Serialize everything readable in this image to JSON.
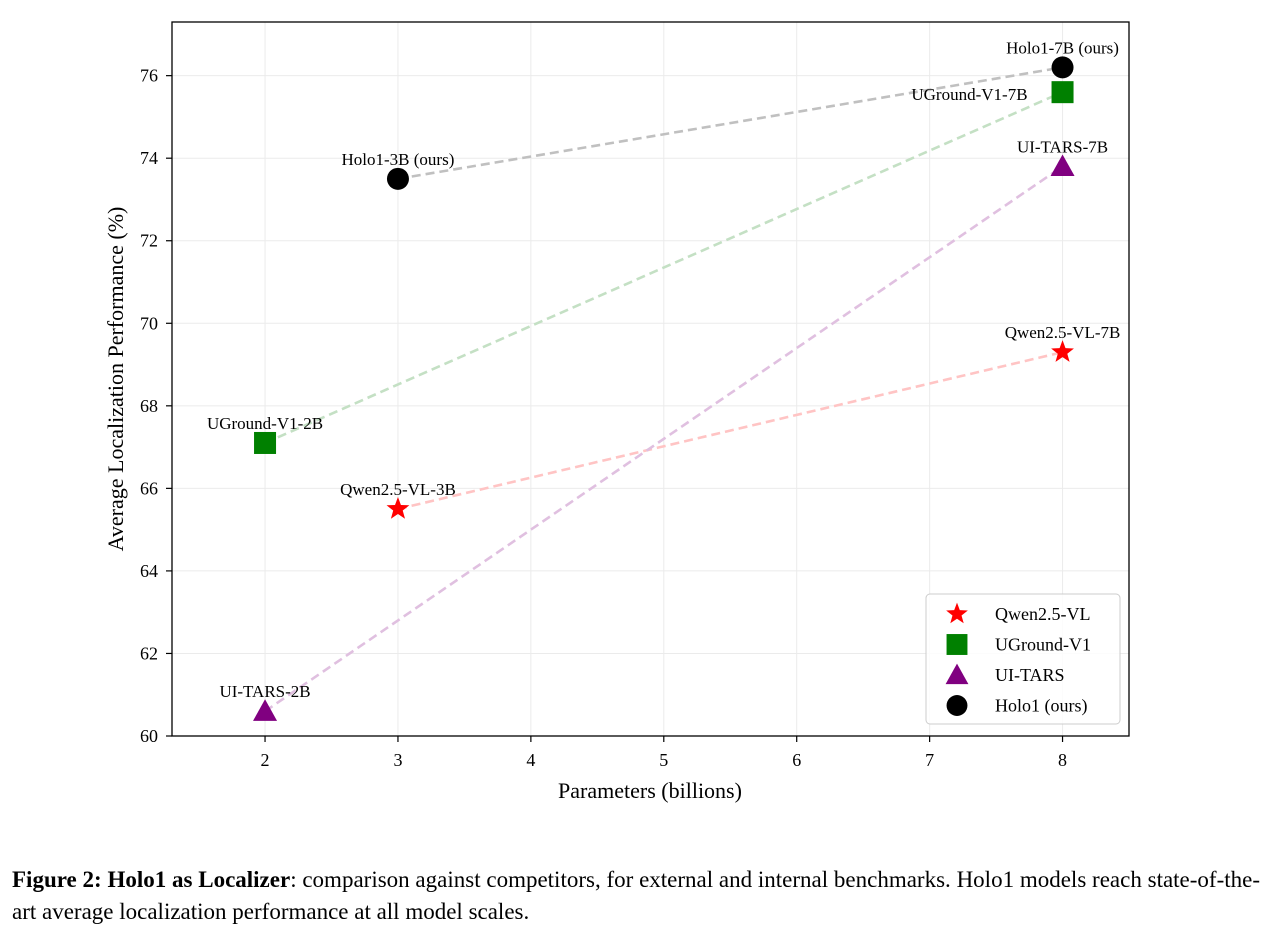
{
  "chart_data": {
    "type": "scatter",
    "xlabel": "Parameters (billions)",
    "ylabel": "Average Localization Performance (%)",
    "xlim": [
      1.3,
      8.5
    ],
    "ylim": [
      60,
      77.3
    ],
    "xticks": [
      2,
      3,
      4,
      5,
      6,
      7,
      8
    ],
    "yticks": [
      60,
      62,
      64,
      66,
      68,
      70,
      72,
      74,
      76
    ],
    "grid": true,
    "legend_position": "lower right",
    "series": [
      {
        "name": "Qwen2.5-VL",
        "marker": "star",
        "color": "#ff0000",
        "line_color": "#ffc4c4",
        "points": [
          {
            "x": 3,
            "y": 65.5,
            "label": "Qwen2.5-VL-3B"
          },
          {
            "x": 8,
            "y": 69.3,
            "label": "Qwen2.5-VL-7B"
          }
        ]
      },
      {
        "name": "UGround-V1",
        "marker": "square",
        "color": "#008000",
        "line_color": "#c4e0c4",
        "points": [
          {
            "x": 2,
            "y": 67.1,
            "label": "UGround-V1-2B"
          },
          {
            "x": 8,
            "y": 75.6,
            "label": "UGround-V1-7B"
          }
        ]
      },
      {
        "name": "UI-TARS",
        "marker": "triangle",
        "color": "#800080",
        "line_color": "#e0c0e0",
        "points": [
          {
            "x": 2,
            "y": 60.6,
            "label": "UI-TARS-2B"
          },
          {
            "x": 8,
            "y": 73.8,
            "label": "UI-TARS-7B"
          }
        ]
      },
      {
        "name": "Holo1 (ours)",
        "marker": "circle",
        "color": "#000000",
        "line_color": "#c0c0c0",
        "points": [
          {
            "x": 3,
            "y": 73.5,
            "label": "Holo1-3B (ours)"
          },
          {
            "x": 8,
            "y": 76.2,
            "label": "Holo1-7B (ours)"
          }
        ]
      }
    ]
  },
  "caption": {
    "lead": "Figure 2: Holo1 as Localizer",
    "text": ": comparison against competitors, for external and internal benchmarks. Holo1 models reach state-of-the-art average localization performance at all model scales."
  }
}
